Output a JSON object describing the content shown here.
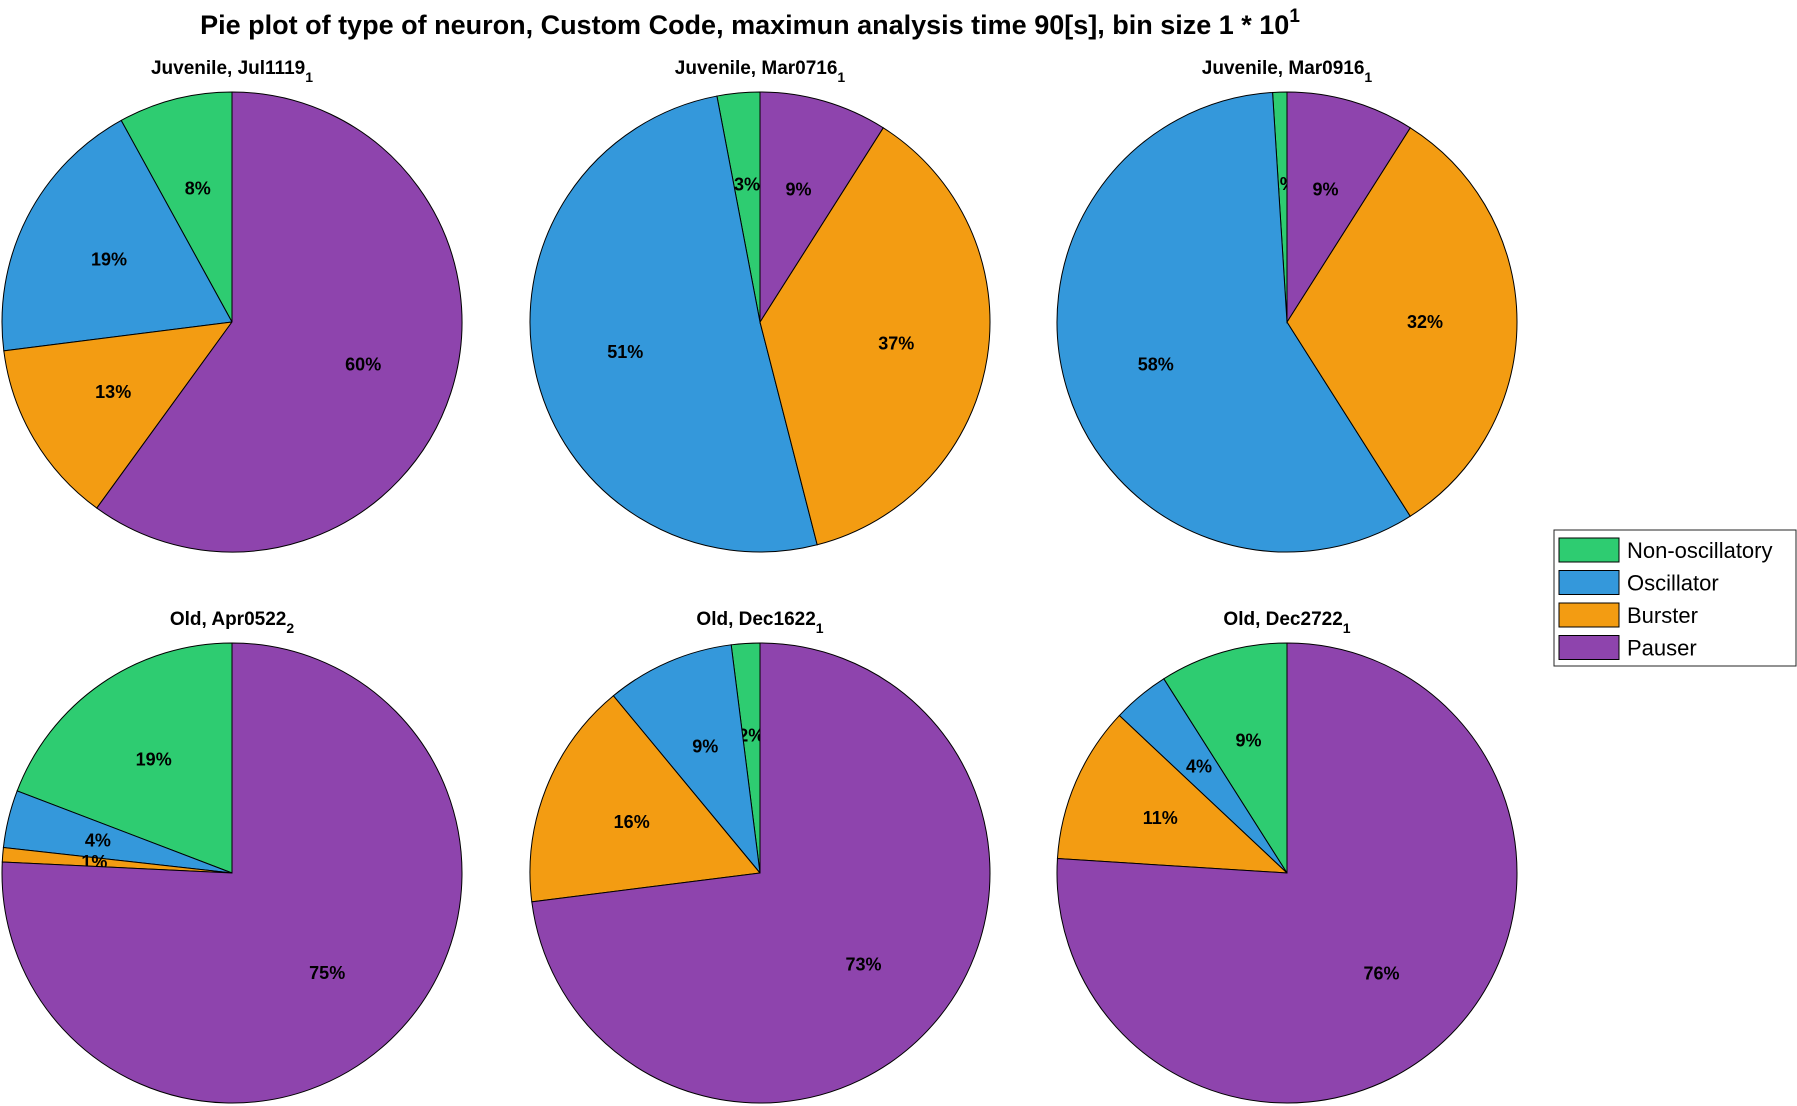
{
  "chart_data": {
    "type": "pie",
    "title": {
      "text": "Pie plot of type of neuron, Custom Code, maximun analysis time 90[s], bin size 1 * 10",
      "superscript": "1"
    },
    "legend": {
      "placement": "right",
      "entries": [
        {
          "label": "Non-oscillatory",
          "color": "#2ecc71"
        },
        {
          "label": "Oscillator",
          "color": "#3498db"
        },
        {
          "label": "Burster",
          "color": "#f39c12"
        },
        {
          "label": "Pauser",
          "color": "#8e44ad"
        }
      ]
    },
    "categories": [
      "Non-oscillatory",
      "Oscillator",
      "Burster",
      "Pauser"
    ],
    "pies": [
      {
        "title": "Juvenile, Jul1119",
        "subscript": "1",
        "values": [
          8,
          19,
          13,
          60
        ],
        "labels": [
          "8%",
          "19%",
          "13%",
          "60%"
        ]
      },
      {
        "title": "Juvenile, Mar0716",
        "subscript": "1",
        "values": [
          3,
          51,
          37,
          9
        ],
        "labels": [
          "3%",
          "51%",
          "37%",
          "9%"
        ]
      },
      {
        "title": "Juvenile, Mar0916",
        "subscript": "1",
        "values": [
          1,
          58,
          32,
          9
        ],
        "labels": [
          "1%",
          "58%",
          "32%",
          "9%"
        ]
      },
      {
        "title": "Old, Apr0522",
        "subscript": "2",
        "values": [
          19,
          4,
          1,
          75
        ],
        "labels": [
          "19%",
          "4%",
          "1%",
          "75%"
        ]
      },
      {
        "title": "Old, Dec1622",
        "subscript": "1",
        "values": [
          2,
          9,
          16,
          73
        ],
        "labels": [
          "2%",
          "9%",
          "16%",
          "73%"
        ]
      },
      {
        "title": "Old, Dec2722",
        "subscript": "1",
        "values": [
          9,
          4,
          11,
          76
        ],
        "labels": [
          "9%",
          "4%",
          "11%",
          "76%"
        ]
      }
    ]
  }
}
